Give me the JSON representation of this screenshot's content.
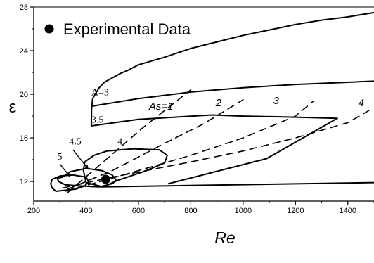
{
  "chart_data": {
    "type": "line",
    "title": "",
    "xlabel": "Re",
    "ylabel": "ε",
    "xlim": [
      200,
      1500
    ],
    "ylim": [
      10.2,
      28
    ],
    "xticks": [
      200,
      400,
      600,
      800,
      1000,
      1200,
      1400
    ],
    "yticks": [
      12,
      16,
      20,
      24,
      28
    ],
    "legend": {
      "position": "top-left",
      "label": "Experimental Data",
      "marker": "filled-circle"
    },
    "experimental_point": {
      "x": 475,
      "y": 12.2
    },
    "series": [
      {
        "name": "A=3",
        "style": "solid",
        "label_at": {
          "x": 420,
          "y": 19.9
        },
        "x": [
          420,
          421,
          425,
          435,
          450,
          470,
          500,
          530,
          560,
          600,
          700,
          800,
          900,
          1000,
          1100,
          1200,
          1300,
          1400,
          1500
        ],
        "y": [
          17.2,
          18.7,
          19.6,
          20.0,
          20.6,
          21.1,
          21.5,
          21.9,
          22.2,
          22.7,
          23.4,
          24.2,
          24.8,
          25.4,
          25.9,
          26.4,
          26.8,
          27.1,
          27.5
        ]
      },
      {
        "name": "",
        "style": "solid",
        "x": [
          420,
          600,
          800,
          1000,
          1200,
          1400,
          1500
        ],
        "y": [
          18.9,
          19.6,
          20.2,
          20.6,
          20.9,
          21.1,
          21.2
        ]
      },
      {
        "name": "3.5",
        "style": "solid",
        "label_at": {
          "x": 420,
          "y": 17.4
        },
        "x": [
          420,
          600,
          880,
          1000,
          1200,
          1360,
          1090,
          715
        ],
        "y": [
          17.1,
          17.7,
          18.1,
          18.0,
          17.9,
          17.8,
          14.1,
          11.8
        ]
      },
      {
        "name": "",
        "style": "solid",
        "x": [
          460,
          1500
        ],
        "y": [
          11.5,
          11.9
        ]
      },
      {
        "name": "4",
        "style": "solid",
        "label_at": {
          "x": 520,
          "y": 15.4
        },
        "x": [
          430,
          480,
          580,
          680,
          710,
          700,
          620,
          520,
          465,
          400,
          390,
          395,
          430
        ],
        "y": [
          14.4,
          14.8,
          15.0,
          14.9,
          14.4,
          13.7,
          12.9,
          12.1,
          11.5,
          11.9,
          13.0,
          13.8,
          14.4
        ]
      },
      {
        "name": "4.5",
        "style": "solid",
        "label_at": {
          "x": 335,
          "y": 15.4
        },
        "x": [
          310,
          340,
          400,
          460,
          500,
          515,
          500,
          450,
          370,
          320,
          295,
          290,
          310
        ],
        "y": [
          12.4,
          12.9,
          13.2,
          13.0,
          12.6,
          12.1,
          11.8,
          11.5,
          11.6,
          11.7,
          12.0,
          12.3,
          12.4
        ]
      },
      {
        "name": "5",
        "style": "solid",
        "label_at": {
          "x": 290,
          "y": 14.0
        },
        "x": [
          270,
          300,
          350,
          400,
          410,
          395,
          360,
          320,
          285,
          270,
          265,
          270
        ],
        "y": [
          12.2,
          12.5,
          12.6,
          12.4,
          12.0,
          11.6,
          11.3,
          11.2,
          11.1,
          11.4,
          11.8,
          12.2
        ]
      },
      {
        "name": "As=1",
        "style": "dashed",
        "label_at": {
          "x": 640,
          "y": 18.6
        },
        "x": [
          330,
          500,
          620,
          800
        ],
        "y": [
          11.0,
          14.5,
          17.0,
          20.4
        ]
      },
      {
        "name": "2",
        "style": "dashed",
        "label_at": {
          "x": 895,
          "y": 18.9
        },
        "x": [
          330,
          500,
          700,
          850,
          1000
        ],
        "y": [
          11.3,
          13.0,
          15.5,
          17.3,
          19.5
        ]
      },
      {
        "name": "3",
        "style": "dashed",
        "label_at": {
          "x": 1115,
          "y": 19.1
        },
        "x": [
          320,
          500,
          800,
          1000,
          1200,
          1270
        ],
        "y": [
          11.1,
          12.3,
          14.4,
          16.0,
          18.0,
          19.4
        ]
      },
      {
        "name": "4",
        "style": "dashed",
        "label_at": {
          "x": 1440,
          "y": 18.9
        },
        "x": [
          310,
          500,
          800,
          1000,
          1200,
          1400,
          1480
        ],
        "y": [
          11.4,
          12.4,
          13.8,
          14.8,
          16.0,
          17.4,
          18.5
        ]
      }
    ]
  }
}
